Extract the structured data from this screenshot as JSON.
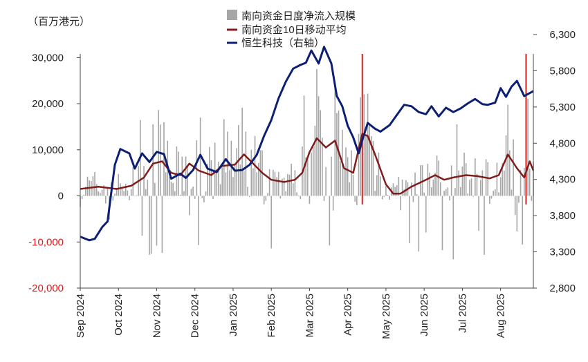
{
  "chart_data": {
    "type": "bar+line",
    "unit_label": "（百万港元）",
    "legend": {
      "placement": "top-center",
      "items": [
        {
          "name": "南向资金日度净流入规模",
          "kind": "bar",
          "color": "#a6a6a6"
        },
        {
          "name": "南向资金10日移动平均",
          "kind": "line",
          "color": "#7f1d1d"
        },
        {
          "name": "恒生科技（右轴）",
          "kind": "line",
          "color": "#0d1f73"
        }
      ]
    },
    "left_axis": {
      "ylim": [
        -20000,
        35000
      ],
      "ticks": [
        30000,
        20000,
        10000,
        0,
        -10000,
        -20000
      ],
      "tick_labels": [
        "30,000",
        "20,000",
        "10,000",
        "0",
        "-10,000",
        "-20,000"
      ],
      "negative_color": "#d42020"
    },
    "right_axis": {
      "ylim": [
        2800,
        6300
      ],
      "ticks": [
        6300,
        5800,
        5300,
        4800,
        4300,
        3800,
        3300,
        2800
      ],
      "tick_labels": [
        "6,300",
        "5,800",
        "5,300",
        "4,800",
        "4,300",
        "3,800",
        "3,300",
        "2,800"
      ]
    },
    "x_axis": {
      "range": [
        0,
        249
      ],
      "ticks": [
        {
          "label": "Sep 2024",
          "at": 0
        },
        {
          "label": "Oct 2024",
          "at": 21
        },
        {
          "label": "Nov 2024",
          "at": 42
        },
        {
          "label": "Dec 2024",
          "at": 63
        },
        {
          "label": "Jan 2025",
          "at": 84
        },
        {
          "label": "Feb 2025",
          "at": 105
        },
        {
          "label": "Mar 2025",
          "at": 126
        },
        {
          "label": "Apr 2025",
          "at": 147
        },
        {
          "label": "May 2025",
          "at": 168
        },
        {
          "label": "Jun 2025",
          "at": 189
        },
        {
          "label": "Jul 2025",
          "at": 210
        },
        {
          "label": "Aug 2025",
          "at": 231
        }
      ]
    },
    "markers": [
      {
        "at": 155,
        "color": "#d42020"
      },
      {
        "at": 245,
        "color": "#d42020"
      }
    ],
    "ma10_points": [
      [
        0,
        1500
      ],
      [
        10,
        2000
      ],
      [
        20,
        1500
      ],
      [
        28,
        2200
      ],
      [
        35,
        4000
      ],
      [
        40,
        7000
      ],
      [
        45,
        7500
      ],
      [
        50,
        5000
      ],
      [
        55,
        4500
      ],
      [
        60,
        7000
      ],
      [
        65,
        5500
      ],
      [
        72,
        4500
      ],
      [
        78,
        6500
      ],
      [
        85,
        6800
      ],
      [
        90,
        9000
      ],
      [
        95,
        7000
      ],
      [
        100,
        5000
      ],
      [
        105,
        3500
      ],
      [
        112,
        3000
      ],
      [
        118,
        3500
      ],
      [
        122,
        5000
      ],
      [
        126,
        9500
      ],
      [
        130,
        12500
      ],
      [
        135,
        10500
      ],
      [
        140,
        12000
      ],
      [
        145,
        6000
      ],
      [
        150,
        5000
      ],
      [
        155,
        13500
      ],
      [
        158,
        13000
      ],
      [
        162,
        9000
      ],
      [
        168,
        2500
      ],
      [
        172,
        500
      ],
      [
        176,
        500
      ],
      [
        182,
        2000
      ],
      [
        190,
        3500
      ],
      [
        195,
        4500
      ],
      [
        200,
        3500
      ],
      [
        205,
        4000
      ],
      [
        212,
        4500
      ],
      [
        218,
        4300
      ],
      [
        225,
        3800
      ],
      [
        230,
        4500
      ],
      [
        235,
        9000
      ],
      [
        240,
        6000
      ],
      [
        244,
        4000
      ],
      [
        247,
        7500
      ],
      [
        249,
        5500
      ]
    ],
    "hstech_points": [
      [
        0,
        3510
      ],
      [
        5,
        3460
      ],
      [
        8,
        3480
      ],
      [
        12,
        3640
      ],
      [
        15,
        3720
      ],
      [
        19,
        4500
      ],
      [
        22,
        4720
      ],
      [
        27,
        4660
      ],
      [
        30,
        4450
      ],
      [
        34,
        4660
      ],
      [
        38,
        4540
      ],
      [
        42,
        4680
      ],
      [
        46,
        4650
      ],
      [
        50,
        4310
      ],
      [
        55,
        4380
      ],
      [
        58,
        4320
      ],
      [
        62,
        4430
      ],
      [
        66,
        4640
      ],
      [
        70,
        4450
      ],
      [
        75,
        4400
      ],
      [
        80,
        4580
      ],
      [
        85,
        4420
      ],
      [
        89,
        4430
      ],
      [
        93,
        4500
      ],
      [
        97,
        4640
      ],
      [
        101,
        4900
      ],
      [
        105,
        5120
      ],
      [
        109,
        5420
      ],
      [
        113,
        5650
      ],
      [
        117,
        5830
      ],
      [
        121,
        5880
      ],
      [
        124,
        5910
      ],
      [
        127,
        6080
      ],
      [
        131,
        5900
      ],
      [
        134,
        6130
      ],
      [
        138,
        5900
      ],
      [
        141,
        5450
      ],
      [
        144,
        5310
      ],
      [
        147,
        5040
      ],
      [
        150,
        4880
      ],
      [
        153,
        4660
      ],
      [
        155,
        4840
      ],
      [
        158,
        5080
      ],
      [
        162,
        5000
      ],
      [
        165,
        4960
      ],
      [
        170,
        5050
      ],
      [
        174,
        5190
      ],
      [
        178,
        5330
      ],
      [
        182,
        5310
      ],
      [
        186,
        5230
      ],
      [
        190,
        5200
      ],
      [
        193,
        5310
      ],
      [
        197,
        5170
      ],
      [
        201,
        5290
      ],
      [
        205,
        5230
      ],
      [
        209,
        5280
      ],
      [
        213,
        5350
      ],
      [
        217,
        5410
      ],
      [
        221,
        5340
      ],
      [
        224,
        5330
      ],
      [
        228,
        5360
      ],
      [
        231,
        5560
      ],
      [
        234,
        5440
      ],
      [
        237,
        5580
      ],
      [
        240,
        5660
      ],
      [
        244,
        5450
      ],
      [
        249,
        5520
      ]
    ],
    "daily_bars_note": "daily net inflow bars, one per trading day"
  }
}
